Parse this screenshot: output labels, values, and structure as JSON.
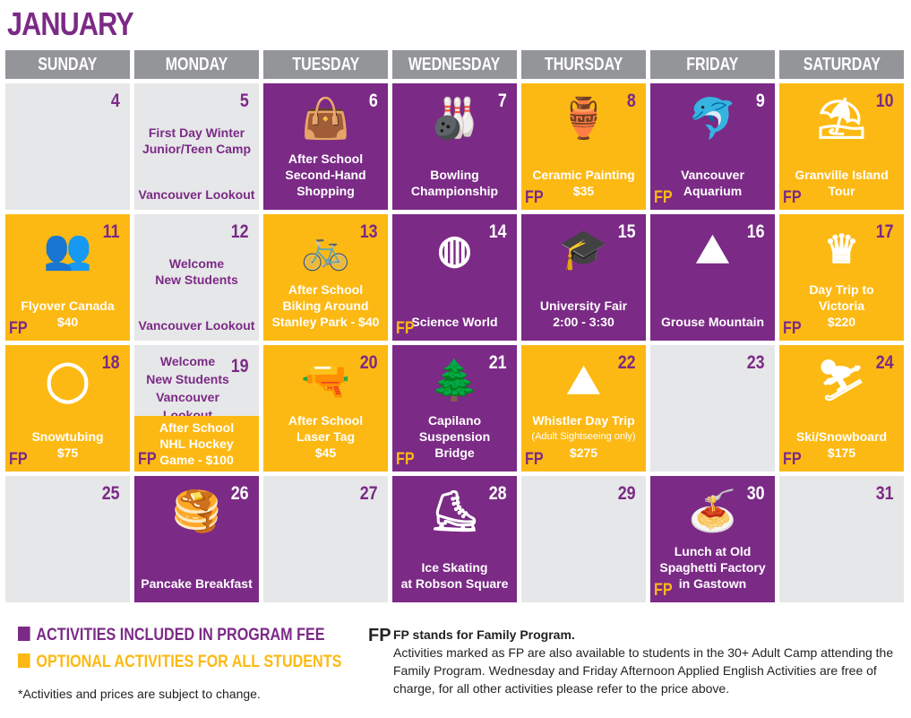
{
  "title": "JANUARY",
  "weekdays": [
    "SUNDAY",
    "MONDAY",
    "TUESDAY",
    "WEDNESDAY",
    "THURSDAY",
    "FRIDAY",
    "SATURDAY"
  ],
  "colors": {
    "purple": "#7b2a86",
    "yellow": "#fdb913",
    "gray": "#e6e7e8",
    "header": "#939598"
  },
  "cells": [
    {
      "day": "4",
      "color": "gray",
      "lines": []
    },
    {
      "day": "5",
      "color": "gray",
      "top": [
        "First Day Winter",
        "Junior/Teen Camp"
      ],
      "lines": [
        "Vancouver Lookout"
      ]
    },
    {
      "day": "6",
      "color": "purple",
      "icon": "shopping-bag-icon",
      "glyph": "👜",
      "lines": [
        "After School",
        "Second-Hand",
        "Shopping"
      ]
    },
    {
      "day": "7",
      "color": "purple",
      "icon": "bowling-icon",
      "glyph": "🎳",
      "lines": [
        "Bowling",
        "Championship"
      ]
    },
    {
      "day": "8",
      "color": "yellow",
      "icon": "pottery-icon",
      "glyph": "🏺",
      "lines": [
        "Ceramic Painting",
        "$35"
      ],
      "fp": "FP"
    },
    {
      "day": "9",
      "color": "purple",
      "icon": "dolphin-icon",
      "glyph": "🐬",
      "lines": [
        "Vancouver",
        "Aquarium"
      ],
      "fp": "FP"
    },
    {
      "day": "10",
      "color": "yellow",
      "icon": "market-stall-icon",
      "glyph": "⛱",
      "lines": [
        "Granville Island",
        "Tour"
      ],
      "fp": "FP"
    },
    {
      "day": "11",
      "color": "yellow",
      "icon": "theater-seats-icon",
      "glyph": "👥",
      "lines": [
        "Flyover Canada",
        "$40"
      ],
      "fp": "FP"
    },
    {
      "day": "12",
      "color": "gray",
      "top": [
        "Welcome",
        "New Students"
      ],
      "lines": [
        "Vancouver Lookout"
      ]
    },
    {
      "day": "13",
      "color": "yellow",
      "icon": "bicycle-icon",
      "glyph": "🚲",
      "lines": [
        "After School",
        "Biking Around",
        "Stanley Park - $40"
      ]
    },
    {
      "day": "14",
      "color": "purple",
      "icon": "geodesic-dome-icon",
      "glyph": "◍",
      "lines": [
        "Science World"
      ],
      "fp": "FP"
    },
    {
      "day": "15",
      "color": "purple",
      "icon": "graduation-cap-icon",
      "glyph": "🎓",
      "lines": [
        "University Fair",
        "2:00 - 3:30"
      ]
    },
    {
      "day": "16",
      "color": "purple",
      "icon": "mountain-icon",
      "glyph": "⛰",
      "lines": [
        "Grouse Mountain"
      ]
    },
    {
      "day": "17",
      "color": "yellow",
      "icon": "crown-icon",
      "glyph": "♛",
      "lines": [
        "Day Trip to",
        "Victoria",
        "$220"
      ],
      "fp": "FP"
    },
    {
      "day": "18",
      "color": "yellow",
      "icon": "snow-tube-icon",
      "glyph": "◯",
      "lines": [
        "Snowtubing",
        "$75"
      ],
      "fp": "FP"
    },
    {
      "day": "19",
      "color": "gray",
      "split": true,
      "top": [
        "Welcome",
        "New Students",
        "Vancouver Lookout"
      ],
      "lines": [
        "After School",
        "NHL Hockey",
        "Game - $100"
      ],
      "fp": "FP"
    },
    {
      "day": "20",
      "color": "yellow",
      "icon": "laser-gun-icon",
      "glyph": "🔫",
      "lines": [
        "After School",
        "Laser Tag",
        "$45"
      ]
    },
    {
      "day": "21",
      "color": "purple",
      "icon": "suspension-bridge-icon",
      "glyph": "🌲",
      "lines": [
        "Capilano",
        "Suspension",
        "Bridge"
      ],
      "fp": "FP"
    },
    {
      "day": "22",
      "color": "yellow",
      "icon": "mountain-icon",
      "glyph": "⛰",
      "lines": [
        "Whistler Day Trip"
      ],
      "note": "(Adult Sightseeing only)",
      "price": "$275",
      "fp": "FP"
    },
    {
      "day": "23",
      "color": "gray",
      "lines": []
    },
    {
      "day": "24",
      "color": "yellow",
      "icon": "skis-icon",
      "glyph": "⛷",
      "lines": [
        "Ski/Snowboard",
        "$175"
      ],
      "fp": "FP"
    },
    {
      "day": "25",
      "color": "gray",
      "lines": []
    },
    {
      "day": "26",
      "color": "purple",
      "icon": "pancakes-icon",
      "glyph": "🥞",
      "lines": [
        "Pancake Breakfast"
      ]
    },
    {
      "day": "27",
      "color": "gray",
      "lines": []
    },
    {
      "day": "28",
      "color": "purple",
      "icon": "ice-skate-icon",
      "glyph": "⛸",
      "lines": [
        "Ice Skating",
        "at Robson Square"
      ]
    },
    {
      "day": "29",
      "color": "gray",
      "lines": []
    },
    {
      "day": "30",
      "color": "purple",
      "icon": "spaghetti-icon",
      "glyph": "🍝",
      "lines": [
        "Lunch at Old",
        "Spaghetti Factory",
        "in Gastown"
      ],
      "fp": "FP"
    },
    {
      "day": "31",
      "color": "gray",
      "lines": []
    }
  ],
  "legend": {
    "included": "ACTIVITIES INCLUDED IN PROGRAM FEE",
    "optional": "OPTIONAL ACTIVITIES FOR ALL STUDENTS"
  },
  "fp_note": {
    "mark": "FP",
    "heading": "FP stands for Family Program.",
    "body": "Activities marked as FP are also available to students in the 30+ Adult Camp attending the Family Program. Wednesday and Friday Afternoon Applied English Activities are free of charge, for all other activities please refer to the price above."
  },
  "disclaimer": "*Activities and prices are subject to change."
}
